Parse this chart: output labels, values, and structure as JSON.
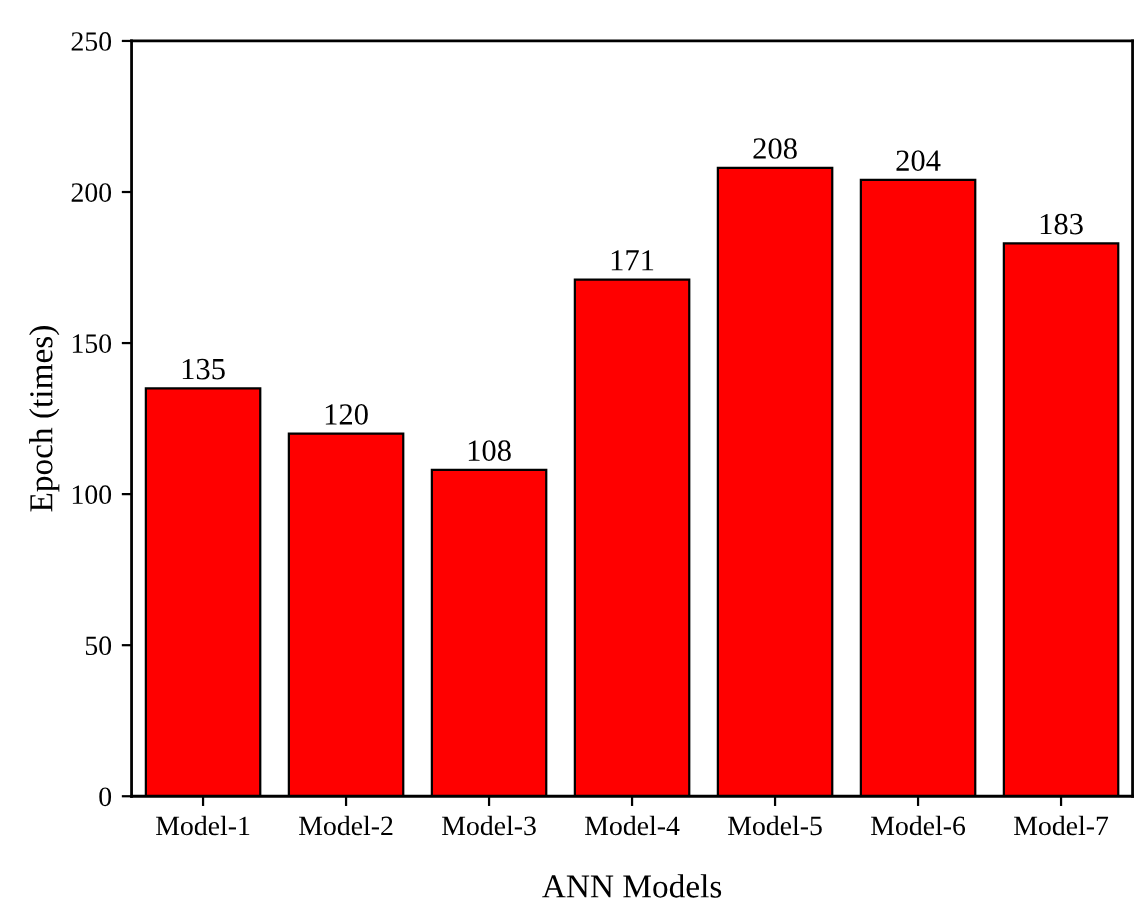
{
  "chart_data": {
    "type": "bar",
    "xlabel": "ANN Models",
    "ylabel": "Epoch (times)",
    "categories": [
      "Model-1",
      "Model-2",
      "Model-3",
      "Model-4",
      "Model-5",
      "Model-6",
      "Model-7"
    ],
    "values": [
      135,
      120,
      108,
      171,
      208,
      204,
      183
    ],
    "color": "#ff0000",
    "ylim": [
      0,
      250
    ],
    "yticks": [
      0,
      50,
      100,
      150,
      200,
      250
    ],
    "data_labels": true,
    "grid": false,
    "legend": false
  }
}
